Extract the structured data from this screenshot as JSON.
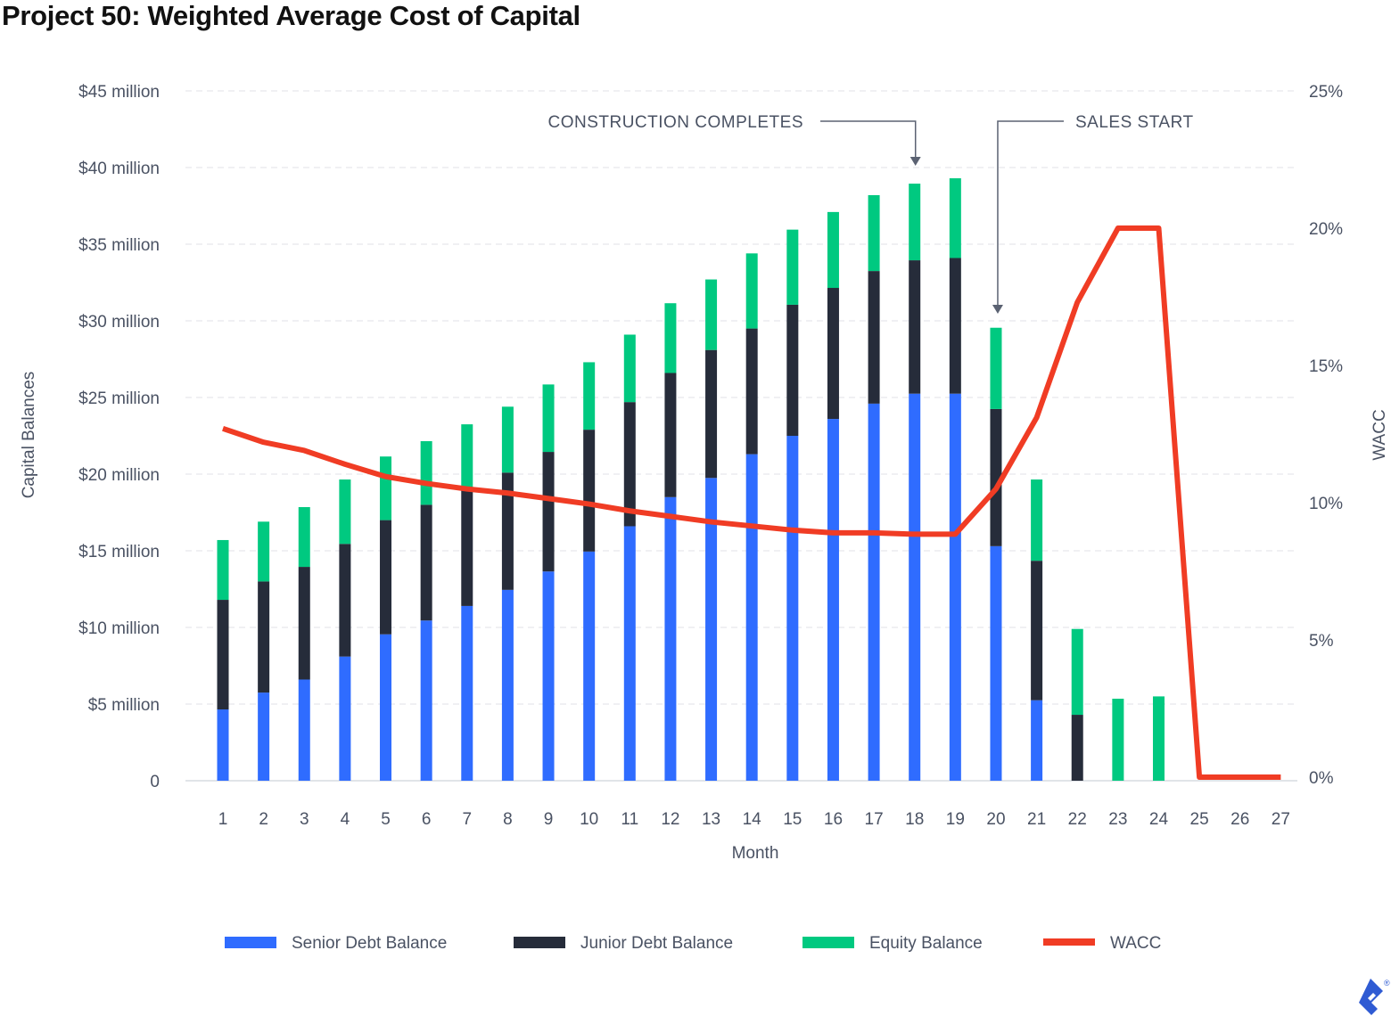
{
  "chart_data": {
    "type": "bar",
    "stacked": true,
    "title": "Project 50: Weighted Average Cost of Capital",
    "xlabel": "Month",
    "ylabel": "Capital Balances",
    "y2label": "WACC",
    "categories": [
      "1",
      "2",
      "3",
      "4",
      "5",
      "6",
      "7",
      "8",
      "9",
      "10",
      "11",
      "12",
      "13",
      "14",
      "15",
      "16",
      "17",
      "18",
      "19",
      "20",
      "21",
      "22",
      "23",
      "24",
      "25",
      "26",
      "27"
    ],
    "ylim": [
      0,
      45
    ],
    "y_ticks": [
      "0",
      "$5 million",
      "$10 million",
      "$15 million",
      "$20 million",
      "$25 million",
      "$30 million",
      "$35 million",
      "$40 million",
      "$45 million"
    ],
    "y2lim": [
      0,
      25
    ],
    "y2_ticks": [
      "0%",
      "5%",
      "10%",
      "15%",
      "20%",
      "25%"
    ],
    "grid": true,
    "legend_position": "bottom",
    "series": [
      {
        "name": "Senior Debt Balance",
        "kind": "bar",
        "color": "#2f6cff",
        "values": [
          4.65,
          5.75,
          6.6,
          8.1,
          9.55,
          10.45,
          11.4,
          12.45,
          13.65,
          14.95,
          16.6,
          18.5,
          19.75,
          21.3,
          22.5,
          23.6,
          24.6,
          25.25,
          25.25,
          15.3,
          5.25,
          0,
          0,
          0,
          0,
          0,
          0
        ]
      },
      {
        "name": "Junior Debt Balance",
        "kind": "bar",
        "color": "#262c3a",
        "values": [
          7.15,
          7.25,
          7.35,
          7.35,
          7.45,
          7.55,
          7.7,
          7.65,
          7.8,
          7.95,
          8.1,
          8.1,
          8.35,
          8.2,
          8.55,
          8.55,
          8.65,
          8.7,
          8.85,
          8.95,
          9.1,
          4.3,
          0,
          0,
          0,
          0,
          0
        ]
      },
      {
        "name": "Equity Balance",
        "kind": "bar",
        "color": "#00c980",
        "values": [
          3.9,
          3.9,
          3.9,
          4.2,
          4.15,
          4.15,
          4.15,
          4.3,
          4.4,
          4.4,
          4.4,
          4.55,
          4.6,
          4.9,
          4.9,
          4.95,
          4.95,
          5.0,
          5.2,
          5.3,
          5.3,
          5.6,
          5.35,
          5.5,
          0,
          0,
          0
        ]
      },
      {
        "name": "WACC",
        "kind": "line",
        "axis": "right",
        "color": "#f03c24",
        "values": [
          12.7,
          12.2,
          11.9,
          11.4,
          10.95,
          10.7,
          10.5,
          10.35,
          10.15,
          9.95,
          9.7,
          9.5,
          9.3,
          9.15,
          9.0,
          8.9,
          8.9,
          8.85,
          8.85,
          10.5,
          13.1,
          17.3,
          20,
          20,
          0,
          0,
          0
        ]
      }
    ],
    "annotations": [
      {
        "text": "CONSTRUCTION COMPLETES",
        "month": "18"
      },
      {
        "text": "SALES START",
        "month": "20"
      }
    ]
  },
  "logo": "toptal"
}
